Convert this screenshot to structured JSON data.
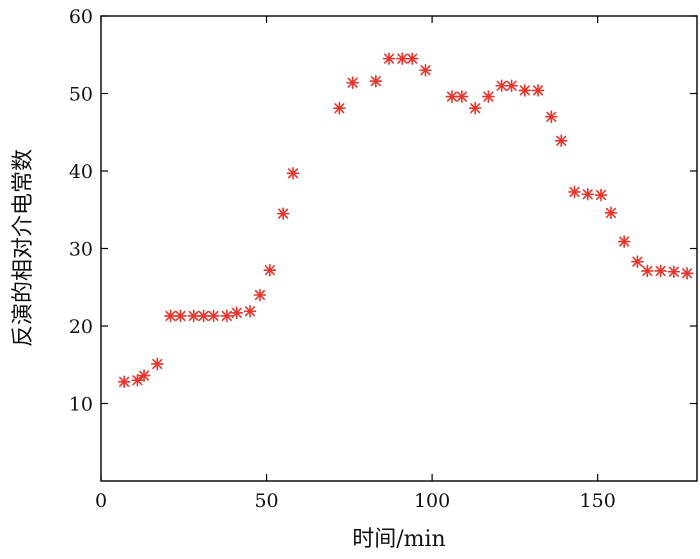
{
  "chart_data": {
    "type": "scatter",
    "title": "",
    "xlabel": "时间/min",
    "ylabel": "反演的相对介电常数",
    "xlim": [
      0,
      180
    ],
    "ylim": [
      0,
      60
    ],
    "xticks": [
      0,
      50,
      100,
      150
    ],
    "yticks": [
      10,
      20,
      30,
      40,
      50,
      60
    ],
    "grid": false,
    "marker": "asterisk",
    "marker_color": "#e8342a",
    "series": [
      {
        "x": [
          7,
          11,
          13,
          17,
          21,
          24,
          28,
          31,
          34,
          38,
          41,
          45,
          48,
          51,
          55,
          58,
          72,
          76,
          83,
          87,
          91,
          94,
          98,
          106,
          109,
          113,
          117,
          121,
          124,
          128,
          132,
          136,
          139,
          143,
          147,
          151,
          154,
          158,
          162,
          165,
          169,
          173,
          177
        ],
        "y": [
          12.8,
          13.0,
          13.6,
          15.1,
          21.3,
          21.3,
          21.3,
          21.3,
          21.3,
          21.3,
          21.7,
          21.9,
          24.0,
          27.2,
          34.5,
          39.7,
          48.1,
          51.4,
          51.6,
          54.5,
          54.5,
          54.5,
          53.0,
          49.6,
          49.6,
          48.1,
          49.6,
          51.0,
          51.0,
          50.4,
          50.4,
          47.0,
          43.9,
          37.3,
          37.0,
          36.9,
          34.6,
          30.9,
          28.3,
          27.1,
          27.1,
          27.0,
          26.8
        ]
      }
    ]
  }
}
